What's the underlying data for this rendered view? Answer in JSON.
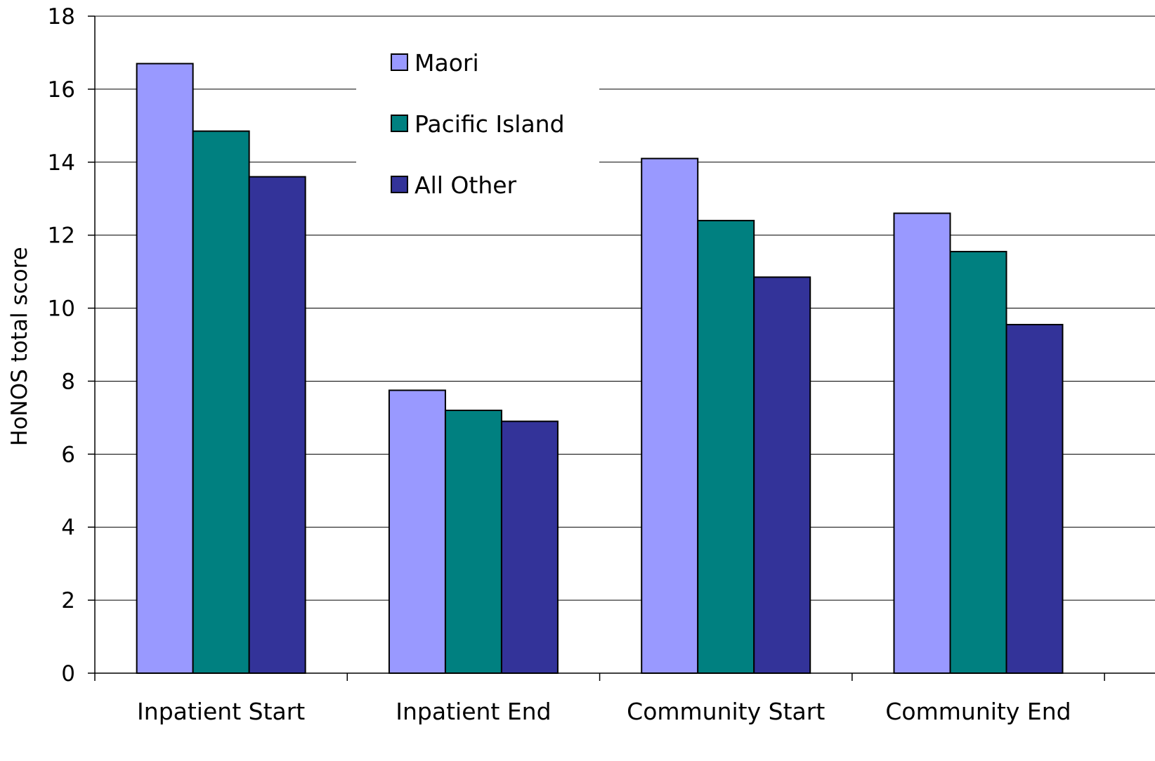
{
  "chart_data": {
    "type": "bar",
    "title": "",
    "xlabel": "",
    "ylabel": "HoNOS total score",
    "ylim": [
      0,
      18
    ],
    "yticks": [
      0,
      2,
      4,
      6,
      8,
      10,
      12,
      14,
      16,
      18
    ],
    "grid": true,
    "legend_position": "top-center",
    "categories": [
      "Inpatient Start",
      "Inpatient End",
      "Community Start",
      "Community End"
    ],
    "series": [
      {
        "name": "Maori",
        "color": "#9999FF",
        "values": [
          16.7,
          7.75,
          14.1,
          12.6
        ]
      },
      {
        "name": "Pacific Island",
        "color": "#008080",
        "values": [
          14.85,
          7.2,
          12.4,
          11.55
        ]
      },
      {
        "name": "All Other",
        "color": "#333399",
        "values": [
          13.6,
          6.9,
          10.85,
          9.55
        ]
      }
    ]
  }
}
